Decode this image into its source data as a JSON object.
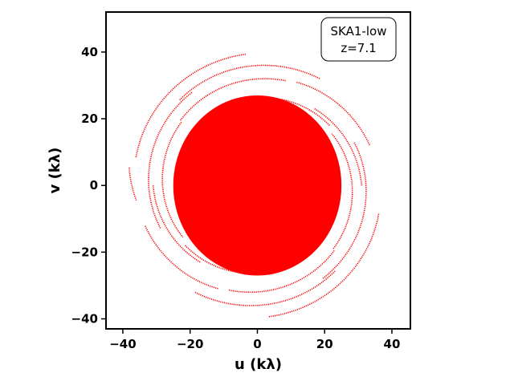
{
  "chart_data": {
    "type": "scatter",
    "title": "",
    "xlabel": "u (kλ)",
    "ylabel": "v (kλ)",
    "xlim": [
      -45,
      45.5
    ],
    "ylim": [
      -43,
      52
    ],
    "xticks": [
      -40,
      -20,
      0,
      20,
      40
    ],
    "yticks": [
      -40,
      -20,
      0,
      20,
      40
    ],
    "xtick_labels": [
      "−40",
      "−20",
      "0",
      "20",
      "40"
    ],
    "ytick_labels": [
      "−40",
      "−20",
      "0",
      "20",
      "40"
    ],
    "grid": false,
    "annotation": {
      "lines": [
        "SKA1-low",
        "z=7.1"
      ],
      "position": "top-right"
    },
    "series": [
      {
        "color": "#ff0000",
        "marker": "dot",
        "description_tracks": true,
        "tracks": [
          {
            "r": 39.5,
            "start": 95,
            "end": 168
          },
          {
            "r": 39.5,
            "start": -85,
            "end": -12
          },
          {
            "r": 38.5,
            "start": 172,
            "end": 188
          },
          {
            "r": 37.0,
            "start": 60,
            "end": 132
          },
          {
            "r": 37.0,
            "start": -120,
            "end": -48
          },
          {
            "r": 35.5,
            "start": 20,
            "end": 70
          },
          {
            "r": 35.5,
            "start": 200,
            "end": 250
          },
          {
            "r": 34.0,
            "start": 125,
            "end": 205
          },
          {
            "r": 34.0,
            "start": -55,
            "end": 25
          },
          {
            "r": 32.5,
            "start": 75,
            "end": 140
          },
          {
            "r": 32.5,
            "start": -105,
            "end": -40
          },
          {
            "r": 31.0,
            "start": 0,
            "end": 55
          },
          {
            "r": 31.0,
            "start": 180,
            "end": 235
          },
          {
            "r": 29.5,
            "start": 140,
            "end": 215
          },
          {
            "r": 29.5,
            "start": -40,
            "end": 35
          },
          {
            "r": 28.0,
            "start": 40,
            "end": 110
          },
          {
            "r": 28.0,
            "start": 220,
            "end": 290
          },
          {
            "r": 26.5,
            "start": 100,
            "end": 170
          },
          {
            "r": 26.5,
            "start": -80,
            "end": -10
          }
        ],
        "core_radius": 25
      }
    ]
  }
}
